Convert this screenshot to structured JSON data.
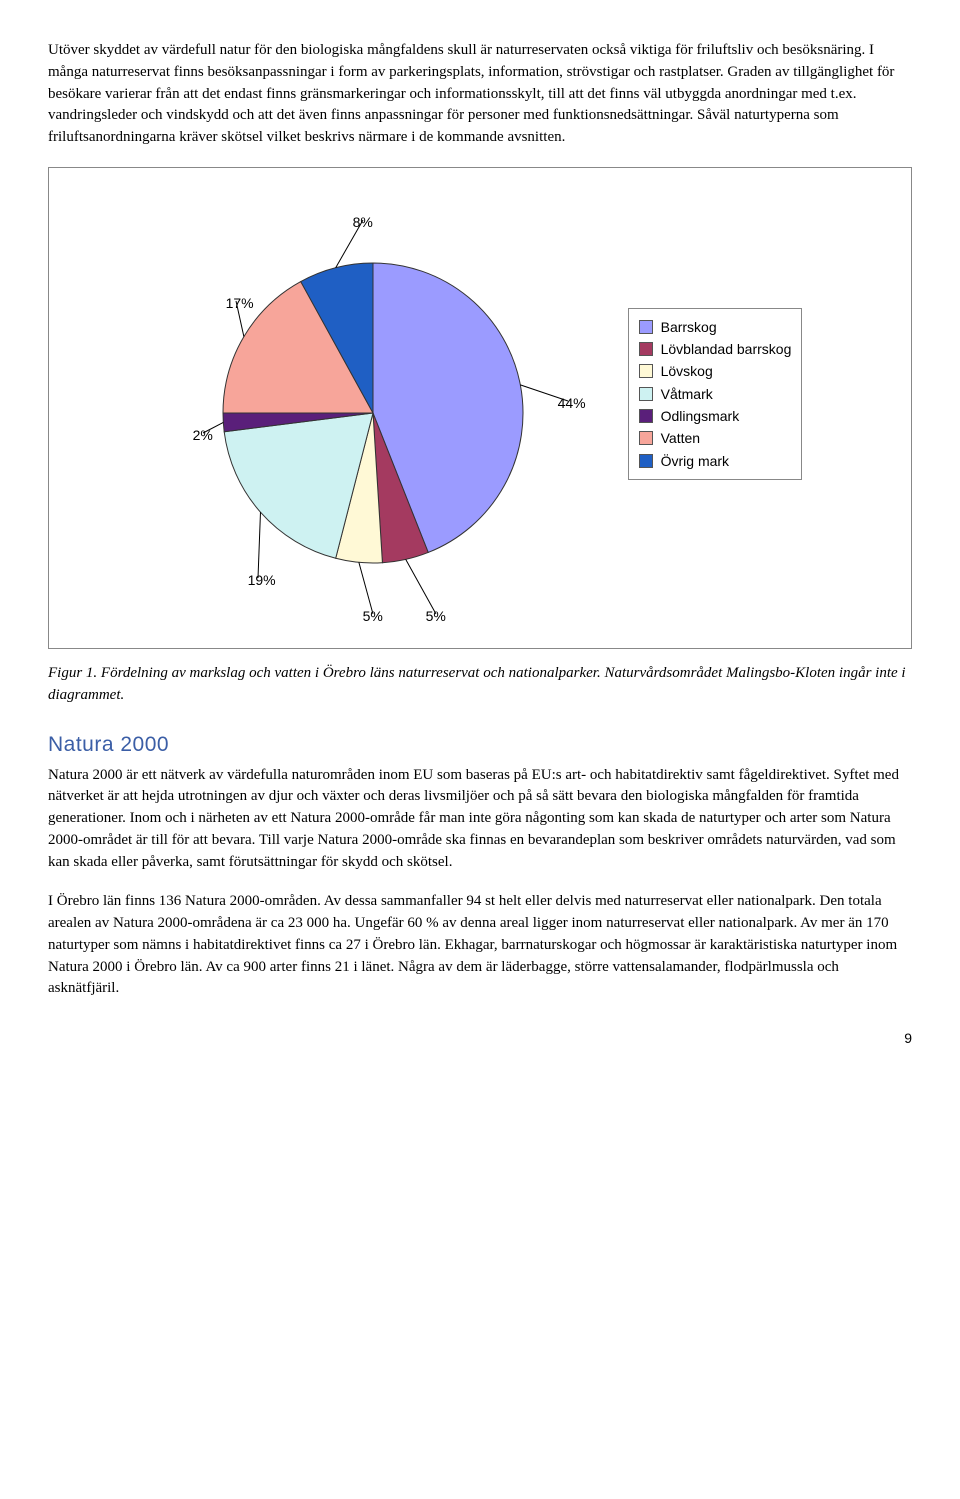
{
  "intro_para": "Utöver skyddet av värdefull natur för den biologiska mångfaldens skull är naturreservaten också viktiga för friluftsliv och besöksnäring. I många naturreservat finns besöksanpassningar i form av parkeringsplats, information, strövstigar och rastplatser. Graden av tillgänglighet för besökare varierar från att det endast finns gränsmarkeringar och informationsskylt, till att det finns väl utbyggda anordningar med t.ex. vandringsleder och vindskydd och att det även finns anpassningar för personer med funktionsnedsättningar. Såväl naturtyperna som friluftsanordningarna kräver skötsel vilket beskrivs närmare i de kommande avsnitten.",
  "chart": {
    "type": "pie",
    "background_color": "#ffffff",
    "border_color": "#888888",
    "slice_border_color": "#333333",
    "label_font_family": "Arial",
    "label_fontsize": 14,
    "legend_border_color": "#888888",
    "slices": [
      {
        "label": "Barrskog",
        "value": 44,
        "color": "#9b9bff",
        "display": "44%"
      },
      {
        "label": "Lövblandad barrskog",
        "value": 5,
        "color": "#a43a60",
        "display": "5%"
      },
      {
        "label": "Lövskog",
        "value": 5,
        "color": "#fff9d6",
        "display": "5%"
      },
      {
        "label": "Våtmark",
        "value": 19,
        "color": "#cef2f2",
        "display": "19%"
      },
      {
        "label": "Odlingsmark",
        "value": 2,
        "color": "#5a1f7a",
        "display": "2%"
      },
      {
        "label": "Vatten",
        "value": 17,
        "color": "#f7a59a",
        "display": "17%"
      },
      {
        "label": "Övrig mark",
        "value": 8,
        "color": "#1f5fc4",
        "display": "8%"
      }
    ]
  },
  "caption": "Figur 1. Fördelning av markslag och vatten i Örebro läns naturreservat och nationalparker. Naturvårdsområdet Malingsbo-Kloten ingår inte i diagrammet.",
  "section_heading": "Natura 2000",
  "natura_para1": "Natura 2000 är ett nätverk av värdefulla naturområden inom EU som baseras på EU:s art- och habitatdirektiv samt fågeldirektivet. Syftet med nätverket är att hejda utrotningen av djur och växter och deras livsmiljöer och på så sätt bevara den biologiska mångfalden för framtida generationer. Inom och i närheten av ett Natura 2000-område får man inte göra någonting som kan skada de naturtyper och arter som Natura 2000-området är till för att bevara. Till varje Natura 2000-område ska finnas en bevarandeplan som beskriver områdets naturvärden, vad som kan skada eller påverka, samt förutsättningar för skydd och skötsel.",
  "natura_para2": "I Örebro län finns 136 Natura 2000-områden. Av dessa sammanfaller 94 st helt eller delvis med naturreservat eller nationalpark. Den totala arealen av Natura 2000-områdena är ca 23 000 ha. Ungefär 60 % av denna areal ligger inom naturreservat eller nationalpark. Av mer än 170 naturtyper som nämns i habitatdirektivet finns ca 27 i Örebro län. Ekhagar, barrnaturskogar och högmossar är karaktäristiska naturtyper inom Natura 2000 i Örebro län. Av ca 900 arter finns 21 i länet. Några av dem är läderbagge, större vattensalamander, flodpärlmussla och asknätfjäril.",
  "page_number": "9"
}
